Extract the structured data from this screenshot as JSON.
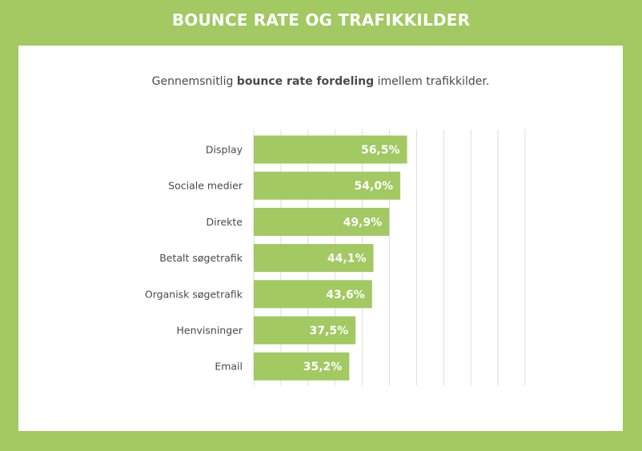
{
  "banner": {
    "title": "BOUNCE RATE OG TRAFIKKILDER"
  },
  "subtitle": {
    "prefix": "Gennemsnitlig ",
    "bold": "bounce rate fordeling",
    "suffix": " imellem trafikkilder."
  },
  "colors": {
    "background": "#a2c962",
    "bar": "#a2c962",
    "panel": "#ffffff",
    "grid": "#dcdcdc",
    "text": "#4a4a4a"
  },
  "chart_data": {
    "type": "bar",
    "orientation": "horizontal",
    "title": "",
    "xlabel": "",
    "ylabel": "",
    "xlim": [
      0,
      100
    ],
    "grid": true,
    "categories": [
      "Display",
      "Sociale medier",
      "Direkte",
      "Betalt søgetrafik",
      "Organisk søgetrafik",
      "Henvisninger",
      "Email"
    ],
    "values": [
      56.5,
      54.0,
      49.9,
      44.1,
      43.6,
      37.5,
      35.2
    ],
    "value_labels": [
      "56,5%",
      "54,0%",
      "49,9%",
      "44,1%",
      "43,6%",
      "37,5%",
      "35,2%"
    ]
  }
}
